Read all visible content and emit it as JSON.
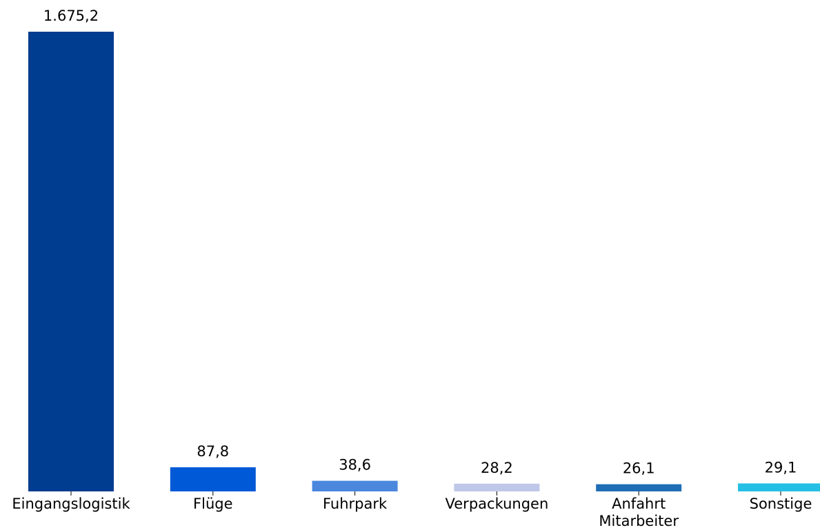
{
  "chart_data": {
    "type": "bar",
    "title": "",
    "xlabel": "",
    "ylabel": "",
    "categories": [
      [
        "Eingangslogistik"
      ],
      [
        "Flüge"
      ],
      [
        "Fuhrpark"
      ],
      [
        "Verpackungen"
      ],
      [
        "Anfahrt",
        "Mitarbeiter"
      ],
      [
        "Sonstige"
      ]
    ],
    "values": [
      1675.2,
      87.8,
      38.6,
      28.2,
      26.1,
      29.1
    ],
    "value_labels": [
      "1.675,2",
      "87,8",
      "38,6",
      "28,2",
      "26,1",
      "29,1"
    ],
    "colors": [
      "#003c8f",
      "#0059d6",
      "#4a87dd",
      "#bfc8e8",
      "#1f6db5",
      "#25bfe6"
    ],
    "ylim": [
      0,
      1675.2
    ],
    "grid": false,
    "y_axis_visible": false
  }
}
